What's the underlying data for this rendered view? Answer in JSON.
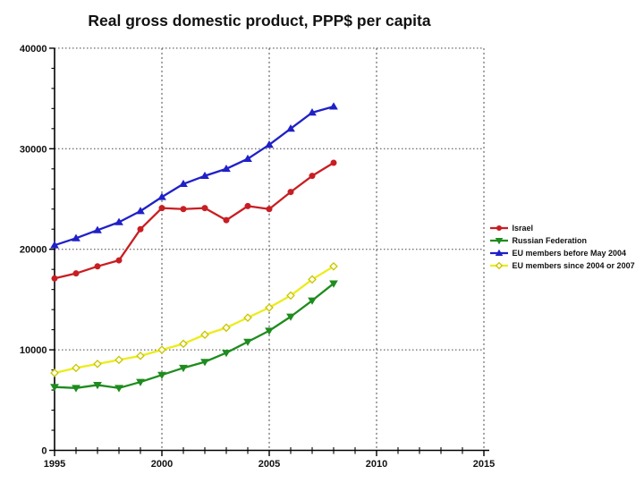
{
  "title": "Real gross domestic product, PPP$ per capita",
  "chart_data": {
    "type": "line",
    "title": "Real gross domestic product, PPP$ per capita",
    "xlabel": "",
    "ylabel": "",
    "xlim": [
      1995,
      2015
    ],
    "ylim": [
      0,
      40000
    ],
    "grid": "major",
    "legend_position": "right",
    "x_tick_labels": [
      "1995",
      "2000",
      "2005",
      "2010",
      "2015"
    ],
    "x_ticks_major": [
      1995,
      2000,
      2005,
      2010,
      2015
    ],
    "x_minor_step": 1,
    "y_tick_labels": [
      "0",
      "10000",
      "20000",
      "30000",
      "40000"
    ],
    "y_ticks_major": [
      0,
      10000,
      20000,
      30000,
      40000
    ],
    "y_minor_step": 2000,
    "x": [
      1995,
      1996,
      1997,
      1998,
      1999,
      2000,
      2001,
      2002,
      2003,
      2004,
      2005,
      2006,
      2007,
      2008
    ],
    "series": [
      {
        "name": "Israel",
        "color": "#c81e23",
        "marker": "circle",
        "values": [
          17100,
          17600,
          18300,
          18900,
          22000,
          24100,
          24000,
          24100,
          22900,
          24300,
          24000,
          25700,
          27300,
          28600
        ]
      },
      {
        "name": "Russian Federation",
        "color": "#1e8c1e",
        "marker": "triangle-down",
        "values": [
          6300,
          6200,
          6500,
          6200,
          6800,
          7500,
          8200,
          8800,
          9700,
          10800,
          11900,
          13300,
          14900,
          16600
        ]
      },
      {
        "name": "EU members before May 2004",
        "color": "#2020c8",
        "marker": "triangle-up",
        "values": [
          20400,
          21100,
          21900,
          22700,
          23800,
          25200,
          26500,
          27300,
          28000,
          29000,
          30400,
          32000,
          33600,
          34200
        ]
      },
      {
        "name": "EU members since 2004 or 2007",
        "color": "#ecec1a",
        "marker": "diamond-open",
        "marker_fill": "#ffffee",
        "marker_stroke": "#c8c400",
        "values": [
          7700,
          8200,
          8600,
          9000,
          9400,
          10000,
          10600,
          11500,
          12200,
          13200,
          14200,
          15400,
          17000,
          18300
        ]
      }
    ]
  }
}
